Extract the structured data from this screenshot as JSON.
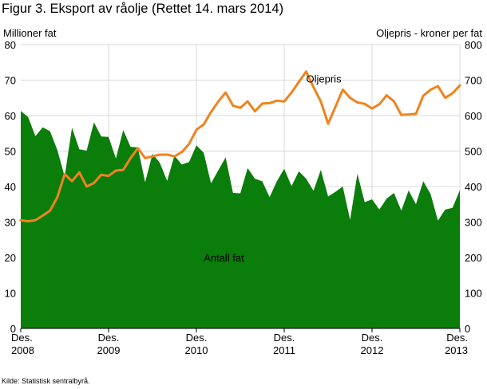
{
  "title": "Figur 3. Eksport av råolje (Rettet 14. mars 2014)",
  "source": "Kilde: Statistisk sentralbyrå.",
  "chart_data": {
    "type": "area",
    "title": "Figur 3. Eksport av råolje (Rettet 14. mars 2014)",
    "ylabel_left": "Millioner fat",
    "ylabel_right": "Oljepris - kroner per fat",
    "ylim_left": [
      0,
      80
    ],
    "ylim_right": [
      0,
      800
    ],
    "yticks_left": [
      "0",
      "10",
      "20",
      "30",
      "40",
      "50",
      "60",
      "70",
      "80"
    ],
    "yticks_right": [
      "0",
      "100",
      "200",
      "300",
      "400",
      "500",
      "600",
      "700",
      "800"
    ],
    "xlim": [
      "2008-12",
      "2013-12"
    ],
    "xticks": [
      {
        "month": "2008-12",
        "line1": "Des.",
        "line2": "2008"
      },
      {
        "month": "2009-12",
        "line1": "Des.",
        "line2": "2009"
      },
      {
        "month": "2010-12",
        "line1": "Des.",
        "line2": "2010"
      },
      {
        "month": "2011-12",
        "line1": "Des.",
        "line2": "2011"
      },
      {
        "month": "2012-12",
        "line1": "Des.",
        "line2": "2012"
      },
      {
        "month": "2013-12",
        "line1": "Des.",
        "line2": "2013"
      }
    ],
    "grid": true,
    "months": [
      "2008-12",
      "2009-01",
      "2009-02",
      "2009-03",
      "2009-04",
      "2009-05",
      "2009-06",
      "2009-07",
      "2009-08",
      "2009-09",
      "2009-10",
      "2009-11",
      "2009-12",
      "2010-01",
      "2010-02",
      "2010-03",
      "2010-04",
      "2010-05",
      "2010-06",
      "2010-07",
      "2010-08",
      "2010-09",
      "2010-10",
      "2010-11",
      "2010-12",
      "2011-01",
      "2011-02",
      "2011-03",
      "2011-04",
      "2011-05",
      "2011-06",
      "2011-07",
      "2011-08",
      "2011-09",
      "2011-10",
      "2011-11",
      "2011-12",
      "2012-01",
      "2012-02",
      "2012-03",
      "2012-04",
      "2012-05",
      "2012-06",
      "2012-07",
      "2012-08",
      "2012-09",
      "2012-10",
      "2012-11",
      "2012-12",
      "2013-01",
      "2013-02",
      "2013-03",
      "2013-04",
      "2013-05",
      "2013-06",
      "2013-07",
      "2013-08",
      "2013-09",
      "2013-10",
      "2013-11",
      "2013-12"
    ],
    "series": [
      {
        "name": "Antall fat",
        "axis": "left",
        "color": "#0a7d0a",
        "values": [
          61.3,
          59.6,
          54.2,
          56.7,
          55.6,
          50.3,
          42.8,
          56.6,
          50.5,
          50.1,
          58.1,
          54.1,
          54.0,
          47.9,
          55.9,
          51.2,
          51.0,
          41.2,
          49.2,
          46.7,
          41.6,
          48.7,
          46.2,
          46.9,
          51.6,
          49.5,
          40.9,
          44.6,
          48.2,
          38.2,
          38.1,
          45.2,
          42.2,
          41.5,
          37.0,
          41.5,
          45.0,
          40.1,
          44.3,
          42.2,
          38.8,
          44.7,
          37.2,
          38.5,
          40.0,
          30.6,
          43.6,
          35.6,
          36.4,
          33.5,
          36.6,
          38.2,
          33.2,
          38.9,
          35.0,
          41.5,
          37.9,
          30.4,
          33.5,
          34.0,
          39.0
        ]
      },
      {
        "name": "Oljepris",
        "axis": "right",
        "color": "#f0831e",
        "values": [
          305,
          302,
          305,
          318,
          332,
          370,
          435,
          415,
          440,
          400,
          410,
          433,
          430,
          445,
          447,
          480,
          508,
          480,
          485,
          490,
          490,
          485,
          497,
          520,
          560,
          575,
          610,
          640,
          665,
          628,
          622,
          640,
          612,
          634,
          635,
          642,
          640,
          665,
          695,
          724,
          680,
          640,
          577,
          625,
          673,
          650,
          637,
          633,
          620,
          632,
          657,
          640,
          602,
          603,
          605,
          656,
          673,
          683,
          650,
          663,
          685
        ]
      }
    ],
    "annotations": [
      {
        "text": "Oljepris",
        "month": "2012-03",
        "value_right": 705
      },
      {
        "text": "Antall fat",
        "month": "2011-01",
        "value_left": 20
      }
    ]
  }
}
